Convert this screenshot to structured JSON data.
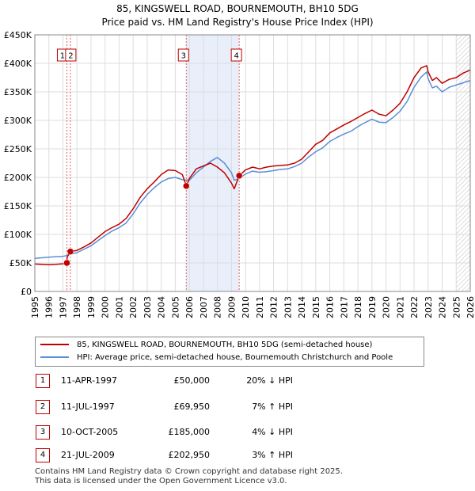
{
  "header": {
    "title": "85, KINGSWELL ROAD, BOURNEMOUTH, BH10 5DG",
    "subtitle": "Price paid vs. HM Land Registry's House Price Index (HPI)"
  },
  "chart_data": {
    "type": "line",
    "title": "85, KINGSWELL ROAD, BOURNEMOUTH, BH10 5DG",
    "subtitle": "Price paid vs. HM Land Registry's House Price Index (HPI)",
    "xlim": [
      1995,
      2026
    ],
    "ylim": [
      0,
      450000
    ],
    "x_ticks": [
      "1995",
      "1996",
      "1997",
      "1998",
      "1999",
      "2000",
      "2001",
      "2002",
      "2003",
      "2004",
      "2005",
      "2006",
      "2007",
      "2008",
      "2009",
      "2010",
      "2011",
      "2012",
      "2013",
      "2014",
      "2015",
      "2016",
      "2017",
      "2018",
      "2019",
      "2020",
      "2021",
      "2022",
      "2023",
      "2024",
      "2025",
      "2026"
    ],
    "y_ticks": [
      {
        "value": 0,
        "label": "£0"
      },
      {
        "value": 50000,
        "label": "£50K"
      },
      {
        "value": 100000,
        "label": "£100K"
      },
      {
        "value": 150000,
        "label": "£150K"
      },
      {
        "value": 200000,
        "label": "£200K"
      },
      {
        "value": 250000,
        "label": "£250K"
      },
      {
        "value": 300000,
        "label": "£300K"
      },
      {
        "value": 350000,
        "label": "£350K"
      },
      {
        "value": 400000,
        "label": "£400K"
      },
      {
        "value": 450000,
        "label": "£450K"
      }
    ],
    "grid": true,
    "shaded_range": [
      2005.78,
      2009.55
    ],
    "projection_start": 2025.0,
    "series": [
      {
        "name": "85, KINGSWELL ROAD, BOURNEMOUTH, BH10 5DG (semi-detached house)",
        "color": "#c00000",
        "x": [
          1995.0,
          1995.5,
          1996.0,
          1996.5,
          1997.0,
          1997.28,
          1997.3,
          1997.53,
          1998.0,
          1998.5,
          1999.0,
          1999.5,
          2000.0,
          2000.5,
          2001.0,
          2001.5,
          2002.0,
          2002.5,
          2003.0,
          2003.5,
          2004.0,
          2004.5,
          2005.0,
          2005.5,
          2005.78,
          2006.0,
          2006.5,
          2007.0,
          2007.5,
          2008.0,
          2008.5,
          2009.0,
          2009.2,
          2009.55,
          2010.0,
          2010.5,
          2011.0,
          2011.5,
          2012.0,
          2012.5,
          2013.0,
          2013.5,
          2014.0,
          2014.5,
          2015.0,
          2015.5,
          2016.0,
          2016.5,
          2017.0,
          2017.5,
          2018.0,
          2018.5,
          2019.0,
          2019.5,
          2020.0,
          2020.5,
          2021.0,
          2021.5,
          2022.0,
          2022.5,
          2022.9,
          2023.0,
          2023.3,
          2023.6,
          2024.0,
          2024.5,
          2025.0,
          2025.5,
          2026.0
        ],
        "values": [
          48000,
          47500,
          47000,
          47500,
          48500,
          50000,
          60000,
          69950,
          72000,
          78000,
          85000,
          95000,
          105000,
          112000,
          118000,
          128000,
          145000,
          165000,
          180000,
          192000,
          205000,
          213000,
          212000,
          205000,
          185000,
          198000,
          215000,
          220000,
          225000,
          218000,
          208000,
          190000,
          180000,
          202950,
          213000,
          218000,
          215000,
          218000,
          220000,
          221000,
          222000,
          225000,
          232000,
          245000,
          258000,
          265000,
          278000,
          285000,
          292000,
          298000,
          305000,
          312000,
          318000,
          311000,
          308000,
          318000,
          330000,
          350000,
          375000,
          392000,
          396000,
          385000,
          370000,
          375000,
          365000,
          372000,
          375000,
          383000,
          388000
        ]
      },
      {
        "name": "HPI: Average price, semi-detached house, Bournemouth Christchurch and Poole",
        "color": "#5b8fd6",
        "x": [
          1995.0,
          1995.5,
          1996.0,
          1996.5,
          1997.0,
          1997.3,
          1997.5,
          1998.0,
          1998.5,
          1999.0,
          1999.5,
          2000.0,
          2000.5,
          2001.0,
          2001.5,
          2002.0,
          2002.5,
          2003.0,
          2003.5,
          2004.0,
          2004.5,
          2005.0,
          2005.5,
          2006.0,
          2006.5,
          2007.0,
          2007.5,
          2008.0,
          2008.5,
          2009.0,
          2009.2,
          2009.55,
          2010.0,
          2010.5,
          2011.0,
          2011.5,
          2012.0,
          2012.5,
          2013.0,
          2013.5,
          2014.0,
          2014.5,
          2015.0,
          2015.5,
          2016.0,
          2016.5,
          2017.0,
          2017.5,
          2018.0,
          2018.5,
          2019.0,
          2019.5,
          2020.0,
          2020.5,
          2021.0,
          2021.5,
          2022.0,
          2022.5,
          2022.9,
          2023.0,
          2023.3,
          2023.6,
          2024.0,
          2024.5,
          2025.0,
          2025.5,
          2026.0
        ],
        "values": [
          58000,
          59000,
          60000,
          61000,
          61500,
          63000,
          65000,
          68000,
          74000,
          80000,
          89000,
          98000,
          106000,
          112000,
          120000,
          136000,
          155000,
          170000,
          182000,
          192000,
          198000,
          200000,
          196000,
          195000,
          208000,
          218000,
          228000,
          235000,
          225000,
          208000,
          195000,
          198000,
          206000,
          211000,
          209000,
          210000,
          212000,
          214000,
          215000,
          219000,
          225000,
          236000,
          245000,
          252000,
          263000,
          270000,
          276000,
          281000,
          289000,
          296000,
          302000,
          297000,
          296000,
          305000,
          316000,
          333000,
          358000,
          376000,
          385000,
          373000,
          357000,
          360000,
          350000,
          358000,
          362000,
          366000,
          370000
        ]
      }
    ],
    "sales": [
      {
        "label": "1",
        "x": 1997.28,
        "value": 50000
      },
      {
        "label": "2",
        "x": 1997.53,
        "value": 69950
      },
      {
        "label": "3",
        "x": 2005.78,
        "value": 185000
      },
      {
        "label": "4",
        "x": 2009.55,
        "value": 202950
      }
    ]
  },
  "legend": {
    "property": "85, KINGSWELL ROAD, BOURNEMOUTH, BH10 5DG (semi-detached house)",
    "hpi": "HPI: Average price, semi-detached house, Bournemouth Christchurch and Poole"
  },
  "table": {
    "rows": [
      {
        "num": "1",
        "date": "11-APR-1997",
        "price": "£50,000",
        "hpi": "20% ↓ HPI"
      },
      {
        "num": "2",
        "date": "11-JUL-1997",
        "price": "£69,950",
        "hpi": "7% ↑ HPI"
      },
      {
        "num": "3",
        "date": "10-OCT-2005",
        "price": "£185,000",
        "hpi": "4% ↓ HPI"
      },
      {
        "num": "4",
        "date": "21-JUL-2009",
        "price": "£202,950",
        "hpi": "3% ↑ HPI"
      }
    ]
  },
  "footer": {
    "line1": "Contains HM Land Registry data © Crown copyright and database right 2025.",
    "line2": "This data is licensed under the Open Government Licence v3.0."
  }
}
